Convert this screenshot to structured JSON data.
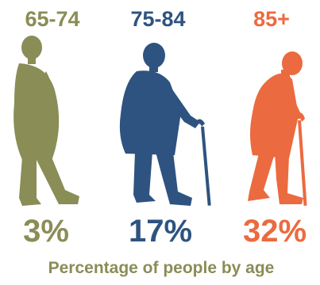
{
  "chart_data": {
    "type": "bar",
    "title": "",
    "caption": "Percentage of people by age",
    "categories": [
      "65-74",
      "75-84",
      "85+"
    ],
    "values": [
      3,
      17,
      32
    ],
    "value_labels": [
      "3%",
      "17%",
      "32%"
    ],
    "colors": [
      "#8a8d56",
      "#2e5380",
      "#ec6a3f"
    ],
    "caption_color": "#8a8d56",
    "icons": [
      "walking-man-icon",
      "walking-man-with-cane-icon",
      "walking-man-with-cane-icon"
    ]
  }
}
